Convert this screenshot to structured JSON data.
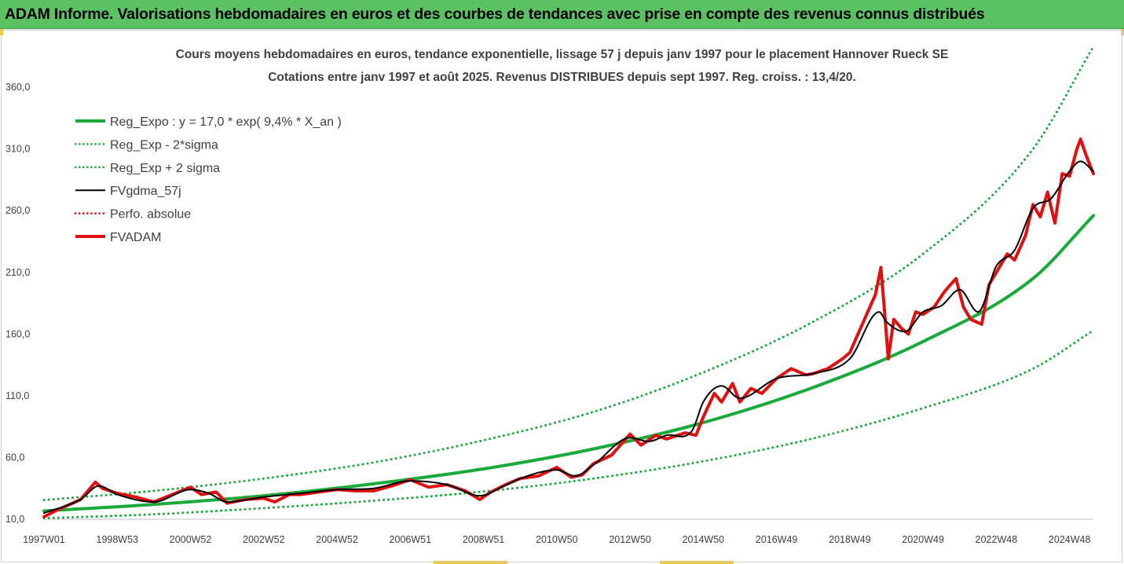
{
  "banner": {
    "title": "ADAM Informe. Valorisations hebdomadaires en euros et des courbes de tendances avec prise en compte des revenus connus distribués"
  },
  "colors": {
    "banner_bg": "#5cc163",
    "trend": "#1aaa3c",
    "band": "#1aaa3c",
    "smoothed": "#000000",
    "price": "#e01010",
    "perfo": "#e01010",
    "accent": "#f4c430"
  },
  "chart_data": {
    "type": "line",
    "title_line1": "Cours moyens hebdomadaires en euros, tendance exponentielle, lissage 57 j depuis janv 1997 pour le placement Hannover Rueck SE",
    "title_line2": "Cotations entre janv 1997 et août 2025. Revenus DISTRIBUES depuis sept 1997. Reg. croiss. : 13,4/20.",
    "x_tick_labels": [
      "1997W01",
      "1998W53",
      "2000W52",
      "2002W52",
      "2004W52",
      "2006W51",
      "2008W51",
      "2010W50",
      "2012W50",
      "2014W50",
      "2016W49",
      "2018W49",
      "2020W49",
      "2022W48",
      "2024W48"
    ],
    "x_tick_years": [
      1997.0,
      1999.0,
      2001.0,
      2003.0,
      2005.0,
      2007.0,
      2009.0,
      2011.0,
      2013.0,
      2015.0,
      2017.0,
      2019.0,
      2021.0,
      2023.0,
      2025.0
    ],
    "x_range": [
      1997.0,
      2025.65
    ],
    "y_ticks": [
      10,
      60,
      110,
      160,
      210,
      260,
      310,
      360
    ],
    "y_tick_labels": [
      "10,0",
      "60,0",
      "110,0",
      "160,0",
      "210,0",
      "260,0",
      "310,0",
      "360,0"
    ],
    "ylim": [
      10,
      390
    ],
    "legend_position": "top-left",
    "series": [
      {
        "name": "Reg_Expo : y = 17,0 * exp( 9,4% *  X_an )",
        "style": "solid-thick",
        "color": "#1aaa3c",
        "x": [
          1997.0,
          2000.0,
          2003.0,
          2006.0,
          2009.0,
          2012.0,
          2015.0,
          2018.0,
          2021.0,
          2024.0,
          2025.65
        ],
        "values": [
          16.7,
          22.0,
          29.0,
          38.7,
          50.8,
          67.0,
          88.3,
          116.8,
          154.0,
          205.0,
          256.0
        ]
      },
      {
        "name": "Reg_Exp - 2*sigma",
        "style": "dotted",
        "color": "#1aaa3c",
        "x": [
          1997.0,
          2000.0,
          2003.0,
          2006.0,
          2009.0,
          2012.0,
          2015.0,
          2018.0,
          2021.0,
          2024.0,
          2025.65
        ],
        "values": [
          10.8,
          14.0,
          19.0,
          25.0,
          32.5,
          43.0,
          57.0,
          75.5,
          100.0,
          132.0,
          163.0
        ]
      },
      {
        "name": "Reg_Exp + 2 sigma",
        "style": "dotted",
        "color": "#1aaa3c",
        "x": [
          1997.0,
          2000.0,
          2003.0,
          2006.0,
          2009.0,
          2012.0,
          2015.0,
          2018.0,
          2021.0,
          2024.0,
          2025.65
        ],
        "values": [
          25.5,
          33.0,
          43.0,
          56.0,
          74.0,
          97.0,
          129.0,
          170.0,
          225.0,
          310.0,
          393.0
        ]
      },
      {
        "name": "FVgdma_57j",
        "style": "solid",
        "color": "#000000",
        "x": [
          1997.0,
          1998.0,
          1998.5,
          1999.0,
          2000.0,
          2001.0,
          2001.5,
          2002.0,
          2003.0,
          2004.0,
          2005.0,
          2006.0,
          2007.0,
          2008.0,
          2008.9,
          2009.5,
          2010.0,
          2011.0,
          2011.5,
          2012.0,
          2013.0,
          2013.5,
          2014.0,
          2014.7,
          2015.0,
          2015.5,
          2016.0,
          2017.0,
          2018.0,
          2019.0,
          2019.8,
          2020.0,
          2020.5,
          2021.0,
          2021.5,
          2022.0,
          2022.5,
          2023.0,
          2023.5,
          2024.0,
          2024.5,
          2025.0,
          2025.3,
          2025.65
        ],
        "values": [
          15.0,
          26.0,
          37.0,
          30.0,
          24.0,
          34.0,
          31.0,
          24.0,
          28.0,
          31.0,
          34.0,
          35.0,
          41.0,
          38.0,
          29.0,
          36.0,
          43.0,
          50.0,
          45.0,
          54.0,
          76.0,
          73.0,
          78.0,
          82.0,
          105.0,
          118.0,
          108.0,
          124.0,
          128.0,
          140.0,
          178.0,
          170.0,
          162.0,
          178.0,
          183.0,
          196.0,
          178.0,
          215.0,
          228.0,
          262.0,
          270.0,
          292.0,
          300.0,
          292.0
        ]
      },
      {
        "name": "Perfo. absolue",
        "style": "dotted",
        "color": "#e01010",
        "x": [],
        "values": []
      },
      {
        "name": "FVADAM",
        "style": "solid-thick",
        "color": "#e01010",
        "x": [
          1997.0,
          1997.4,
          1998.0,
          1998.4,
          1998.6,
          1999.0,
          1999.5,
          2000.0,
          2000.5,
          2001.0,
          2001.3,
          2001.7,
          2002.0,
          2002.5,
          2003.0,
          2003.3,
          2003.7,
          2004.0,
          2004.5,
          2005.0,
          2005.5,
          2006.0,
          2006.5,
          2007.0,
          2007.5,
          2008.0,
          2008.5,
          2008.9,
          2009.2,
          2009.6,
          2010.0,
          2010.5,
          2011.0,
          2011.4,
          2011.7,
          2012.0,
          2012.5,
          2013.0,
          2013.3,
          2013.7,
          2014.0,
          2014.5,
          2014.8,
          2015.0,
          2015.3,
          2015.5,
          2015.8,
          2016.0,
          2016.3,
          2016.6,
          2017.0,
          2017.4,
          2017.8,
          2018.0,
          2018.4,
          2018.8,
          2019.0,
          2019.4,
          2019.7,
          2019.85,
          2019.95,
          2020.05,
          2020.2,
          2020.4,
          2020.6,
          2020.8,
          2021.0,
          2021.3,
          2021.6,
          2021.9,
          2022.1,
          2022.3,
          2022.6,
          2022.8,
          2023.0,
          2023.3,
          2023.5,
          2023.8,
          2024.0,
          2024.2,
          2024.4,
          2024.6,
          2024.8,
          2025.0,
          2025.2,
          2025.3,
          2025.45,
          2025.65
        ],
        "values": [
          12.0,
          18.0,
          26.0,
          40.0,
          35.0,
          31.0,
          28.0,
          24.0,
          30.0,
          36.0,
          30.0,
          32.0,
          23.0,
          26.0,
          27.0,
          24.0,
          30.0,
          30.0,
          32.0,
          34.0,
          33.0,
          33.0,
          37.0,
          42.0,
          36.0,
          38.0,
          33.0,
          26.0,
          32.0,
          38.0,
          43.0,
          45.0,
          52.0,
          44.0,
          46.0,
          55.0,
          62.0,
          79.0,
          70.0,
          78.0,
          75.0,
          80.0,
          78.0,
          93.0,
          112.0,
          105.0,
          120.0,
          105.0,
          116.0,
          112.0,
          124.0,
          132.0,
          127.0,
          128.0,
          132.0,
          140.0,
          145.0,
          172.0,
          192.0,
          214.0,
          178.0,
          140.0,
          172.0,
          165.0,
          160.0,
          178.0,
          176.0,
          182.0,
          195.0,
          205.0,
          182.0,
          172.0,
          168.0,
          200.0,
          210.0,
          225.0,
          220.0,
          240.0,
          265.0,
          255.0,
          275.0,
          250.0,
          290.0,
          288.0,
          310.0,
          318.0,
          305.0,
          290.0
        ]
      }
    ]
  }
}
